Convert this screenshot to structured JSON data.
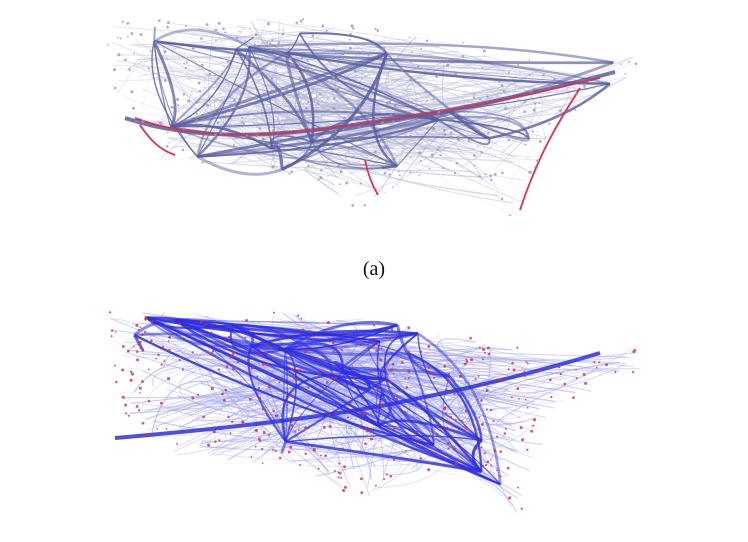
{
  "figure": {
    "caption_a": "(a)",
    "panel_a_colors": {
      "edge": "#5a5fa0",
      "edge_light": "#b7b9d8",
      "highlight": "#d8324f",
      "node": "#9a9ab2"
    },
    "panel_b_colors": {
      "edge": "#2f2fe0",
      "edge_light": "#9fa3ee",
      "node": "#cc3344"
    }
  }
}
